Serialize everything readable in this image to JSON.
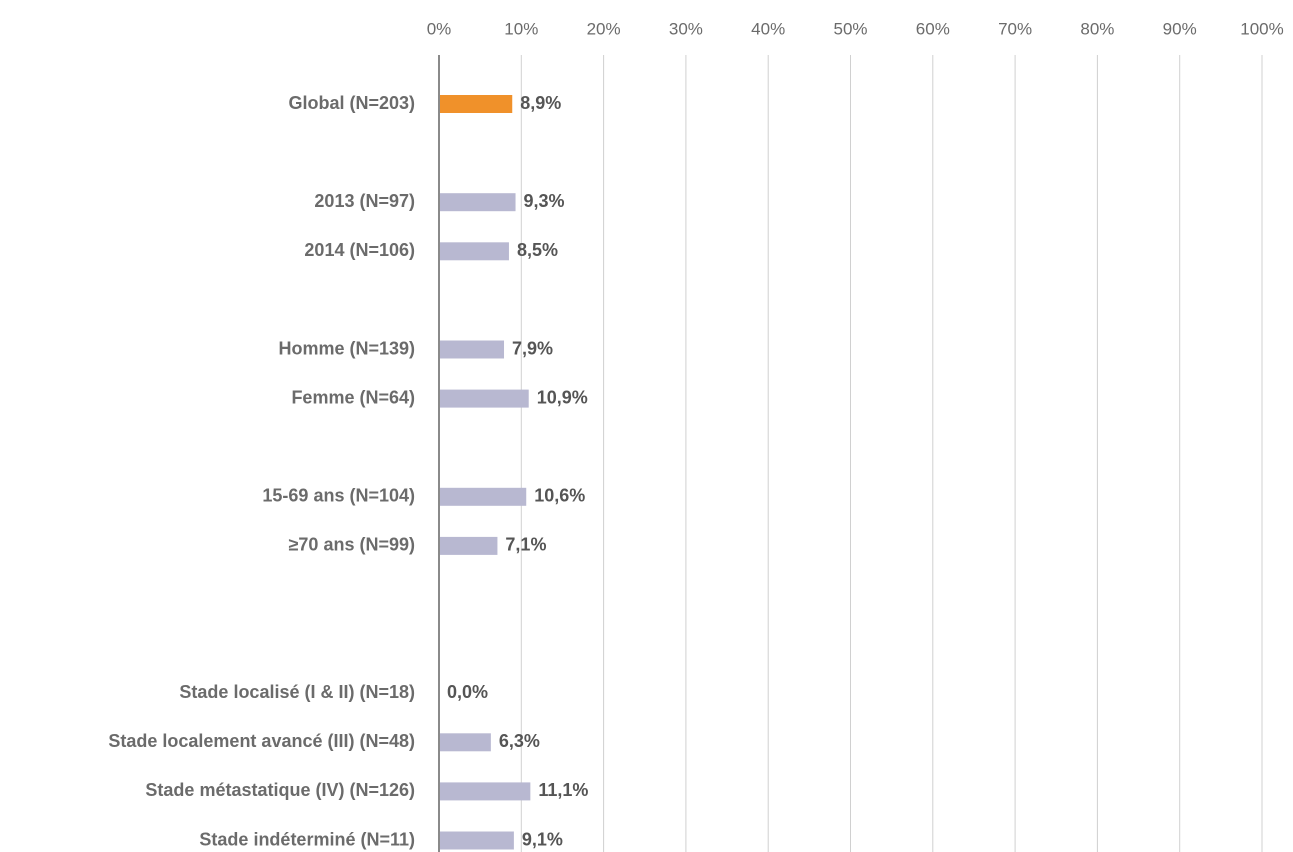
{
  "chart_data": {
    "type": "hbar",
    "categories": [
      "Global (N=203)",
      null,
      "2013 (N=97)",
      "2014 (N=106)",
      null,
      "Homme (N=139)",
      "Femme (N=64)",
      null,
      "15-69 ans (N=104)",
      "≥70 ans (N=99)",
      null,
      null,
      "Stade localisé (I & II) (N=18)",
      "Stade localement avancé (III) (N=48)",
      "Stade métastatique (IV) (N=126)",
      "Stade indéterminé (N=11)"
    ],
    "values": [
      8.9,
      null,
      9.3,
      8.5,
      null,
      7.9,
      10.9,
      null,
      10.6,
      7.1,
      null,
      null,
      0.0,
      6.3,
      11.1,
      9.1
    ],
    "value_labels": [
      "8,9%",
      null,
      "9,3%",
      "8,5%",
      null,
      "7,9%",
      "10,9%",
      null,
      "10,6%",
      "7,1%",
      null,
      null,
      "0,0%",
      "6,3%",
      "11,1%",
      "9,1%"
    ],
    "colors": [
      "#f0912a",
      null,
      "#b8b8d1",
      "#b8b8d1",
      null,
      "#b8b8d1",
      "#b8b8d1",
      null,
      "#b8b8d1",
      "#b8b8d1",
      null,
      null,
      "#b8b8d1",
      "#b8b8d1",
      "#b8b8d1",
      "#b8b8d1"
    ],
    "xlim": [
      0,
      100
    ],
    "xticks": [
      {
        "value": 0,
        "label": "0%"
      },
      {
        "value": 10,
        "label": "10%"
      },
      {
        "value": 20,
        "label": "20%"
      },
      {
        "value": 30,
        "label": "30%"
      },
      {
        "value": 40,
        "label": "40%"
      },
      {
        "value": 50,
        "label": "50%"
      },
      {
        "value": 60,
        "label": "60%"
      },
      {
        "value": 70,
        "label": "70%"
      },
      {
        "value": 80,
        "label": "80%"
      },
      {
        "value": 90,
        "label": "90%"
      },
      {
        "value": 100,
        "label": "100%"
      }
    ],
    "grid": true
  }
}
